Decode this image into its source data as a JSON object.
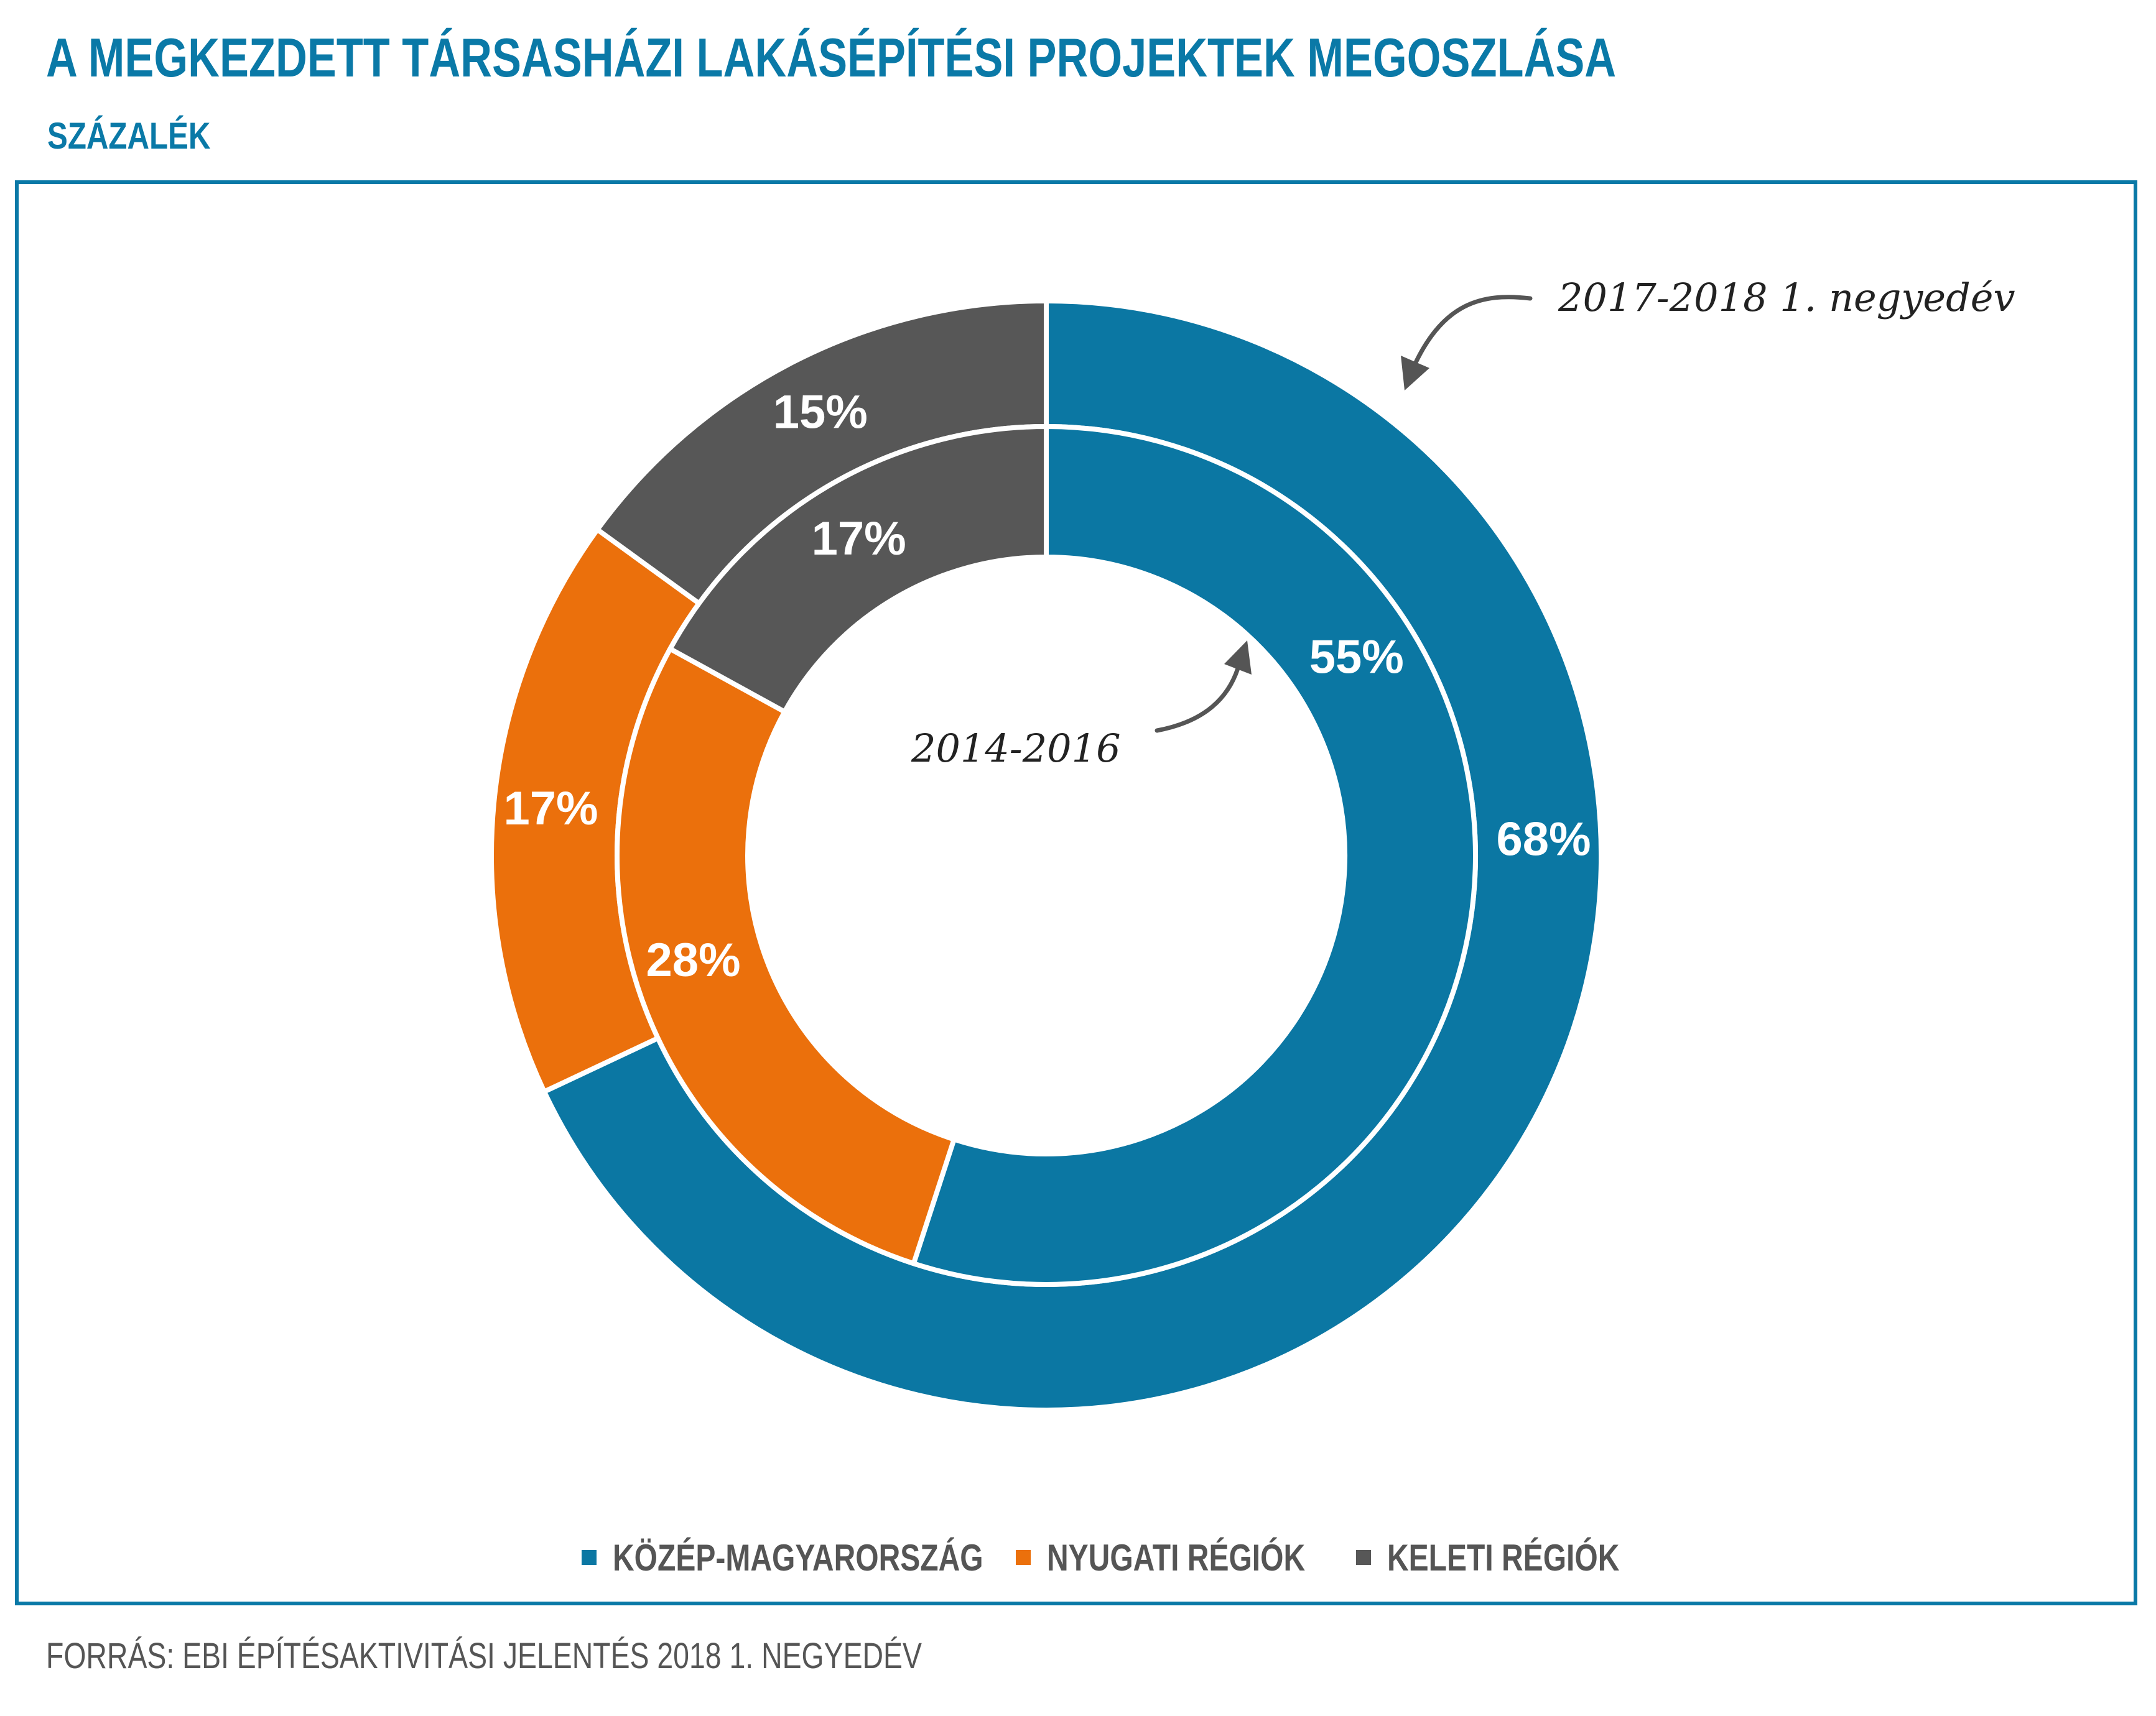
{
  "title": "A MEGKEZDETT TÁRSASHÁZI LAKÁSÉPÍTÉSI PROJEKTEK MEGOSZLÁSA",
  "subtitle": "SZÁZALÉK",
  "source": "FORRÁS: EBI ÉPÍTÉSAKTIVITÁSI JELENTÉS 2018 1. NEGYEDÉV",
  "colors": {
    "accent": "#0a79a7",
    "kozep": "#0b77a3",
    "nyugati": "#eb700c",
    "keleti": "#575757",
    "text_gray": "#555555"
  },
  "legend": [
    {
      "label": "KÖZÉP-MAGYARORSZÁG",
      "color": "#0b77a3"
    },
    {
      "label": "NYUGATI RÉGIÓK",
      "color": "#eb700c"
    },
    {
      "label": "KELETI RÉGIÓK",
      "color": "#575757"
    }
  ],
  "annotations": {
    "outer": "2017-2018 1. negyedév",
    "inner": "2014-2016"
  },
  "chart_data": {
    "type": "pie",
    "title": "A MEGKEZDETT TÁRSASHÁZI LAKÁSÉPÍTÉSI PROJEKTEK MEGOSZLÁSA",
    "subtitle": "SZÁZALÉK",
    "categories": [
      "KÖZÉP-MAGYARORSZÁG",
      "NYUGATI RÉGIÓK",
      "KELETI RÉGIÓK"
    ],
    "series": [
      {
        "name": "2017-2018 1. negyedév",
        "ring": "outer",
        "values": [
          68,
          17,
          15
        ],
        "labels": [
          "68%",
          "17%",
          "15%"
        ]
      },
      {
        "name": "2014-2016",
        "ring": "inner",
        "values": [
          55,
          28,
          17
        ],
        "labels": [
          "55%",
          "28%",
          "17%"
        ]
      }
    ],
    "legend_position": "bottom",
    "start_angle": "top",
    "direction": "clockwise"
  }
}
